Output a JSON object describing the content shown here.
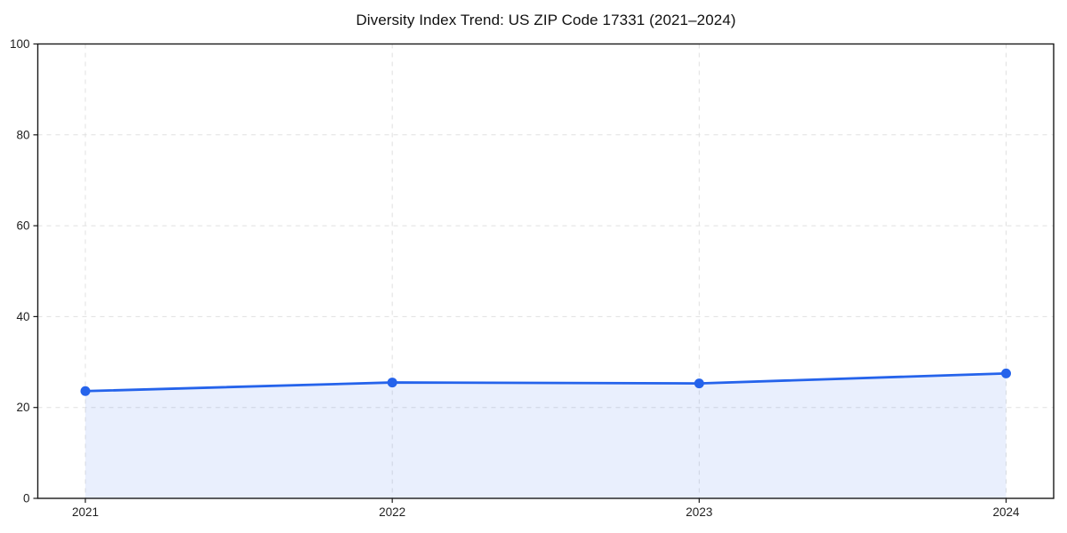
{
  "chart_data": {
    "type": "line",
    "title": "Diversity Index Trend: US ZIP Code 17331 (2021–2024)",
    "categories": [
      "2021",
      "2022",
      "2023",
      "2024"
    ],
    "series": [
      {
        "name": "Diversity Index",
        "values": [
          23.6,
          25.5,
          25.3,
          27.5
        ]
      }
    ],
    "xlabel": "",
    "ylabel": "",
    "ylim": [
      0,
      100
    ],
    "yticks": [
      0,
      20,
      40,
      60,
      80,
      100
    ],
    "grid": true,
    "grid_style": "dashed",
    "legend": false,
    "marker": "circle",
    "colors": {
      "line": "#2563eb",
      "marker": "#2563eb",
      "fill": "#2563eb",
      "fill_opacity": 0.1,
      "grid": "#e0e0e0",
      "spine": "#1a1a1a",
      "tick_text": "#1f1f1f",
      "background": "#ffffff"
    }
  }
}
